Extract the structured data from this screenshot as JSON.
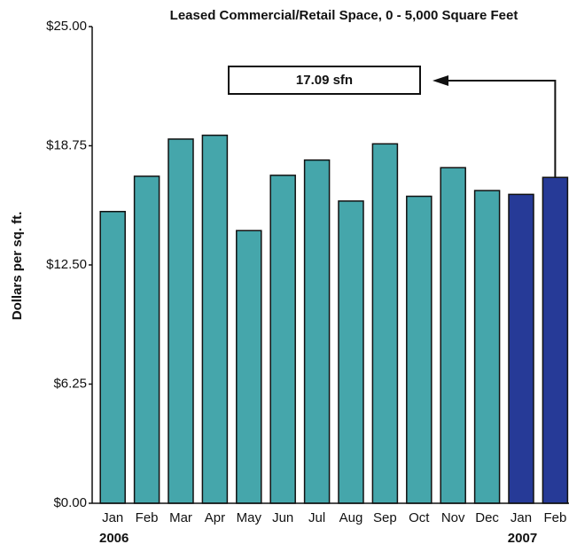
{
  "chart_data": {
    "type": "bar",
    "title": "Leased Commercial/Retail Space, 0 - 5,000 Square Feet",
    "y_label": "Dollars per sq. ft.",
    "categories": [
      "Jan",
      "Feb",
      "Mar",
      "Apr",
      "May",
      "Jun",
      "Jul",
      "Aug",
      "Sep",
      "Oct",
      "Nov",
      "Dec",
      "Jan",
      "Feb"
    ],
    "values": [
      15.3,
      17.15,
      19.1,
      19.3,
      14.3,
      17.2,
      18.0,
      15.85,
      18.85,
      16.1,
      17.6,
      16.4,
      16.2,
      17.09
    ],
    "colors": [
      "#45a6ab",
      "#45a6ab",
      "#45a6ab",
      "#45a6ab",
      "#45a6ab",
      "#45a6ab",
      "#45a6ab",
      "#45a6ab",
      "#45a6ab",
      "#45a6ab",
      "#45a6ab",
      "#45a6ab",
      "#263a97",
      "#263a97"
    ],
    "year_labels": [
      "2006",
      "2007"
    ],
    "annotation": "17.09 sfn",
    "ylim": [
      0,
      25
    ],
    "yticks": [
      {
        "value": 0,
        "label": "$0.00"
      },
      {
        "value": 6.25,
        "label": "$6.25"
      },
      {
        "value": 12.5,
        "label": "$12.50"
      },
      {
        "value": 18.75,
        "label": "$18.75"
      },
      {
        "value": 25,
        "label": "$25.00"
      }
    ]
  }
}
